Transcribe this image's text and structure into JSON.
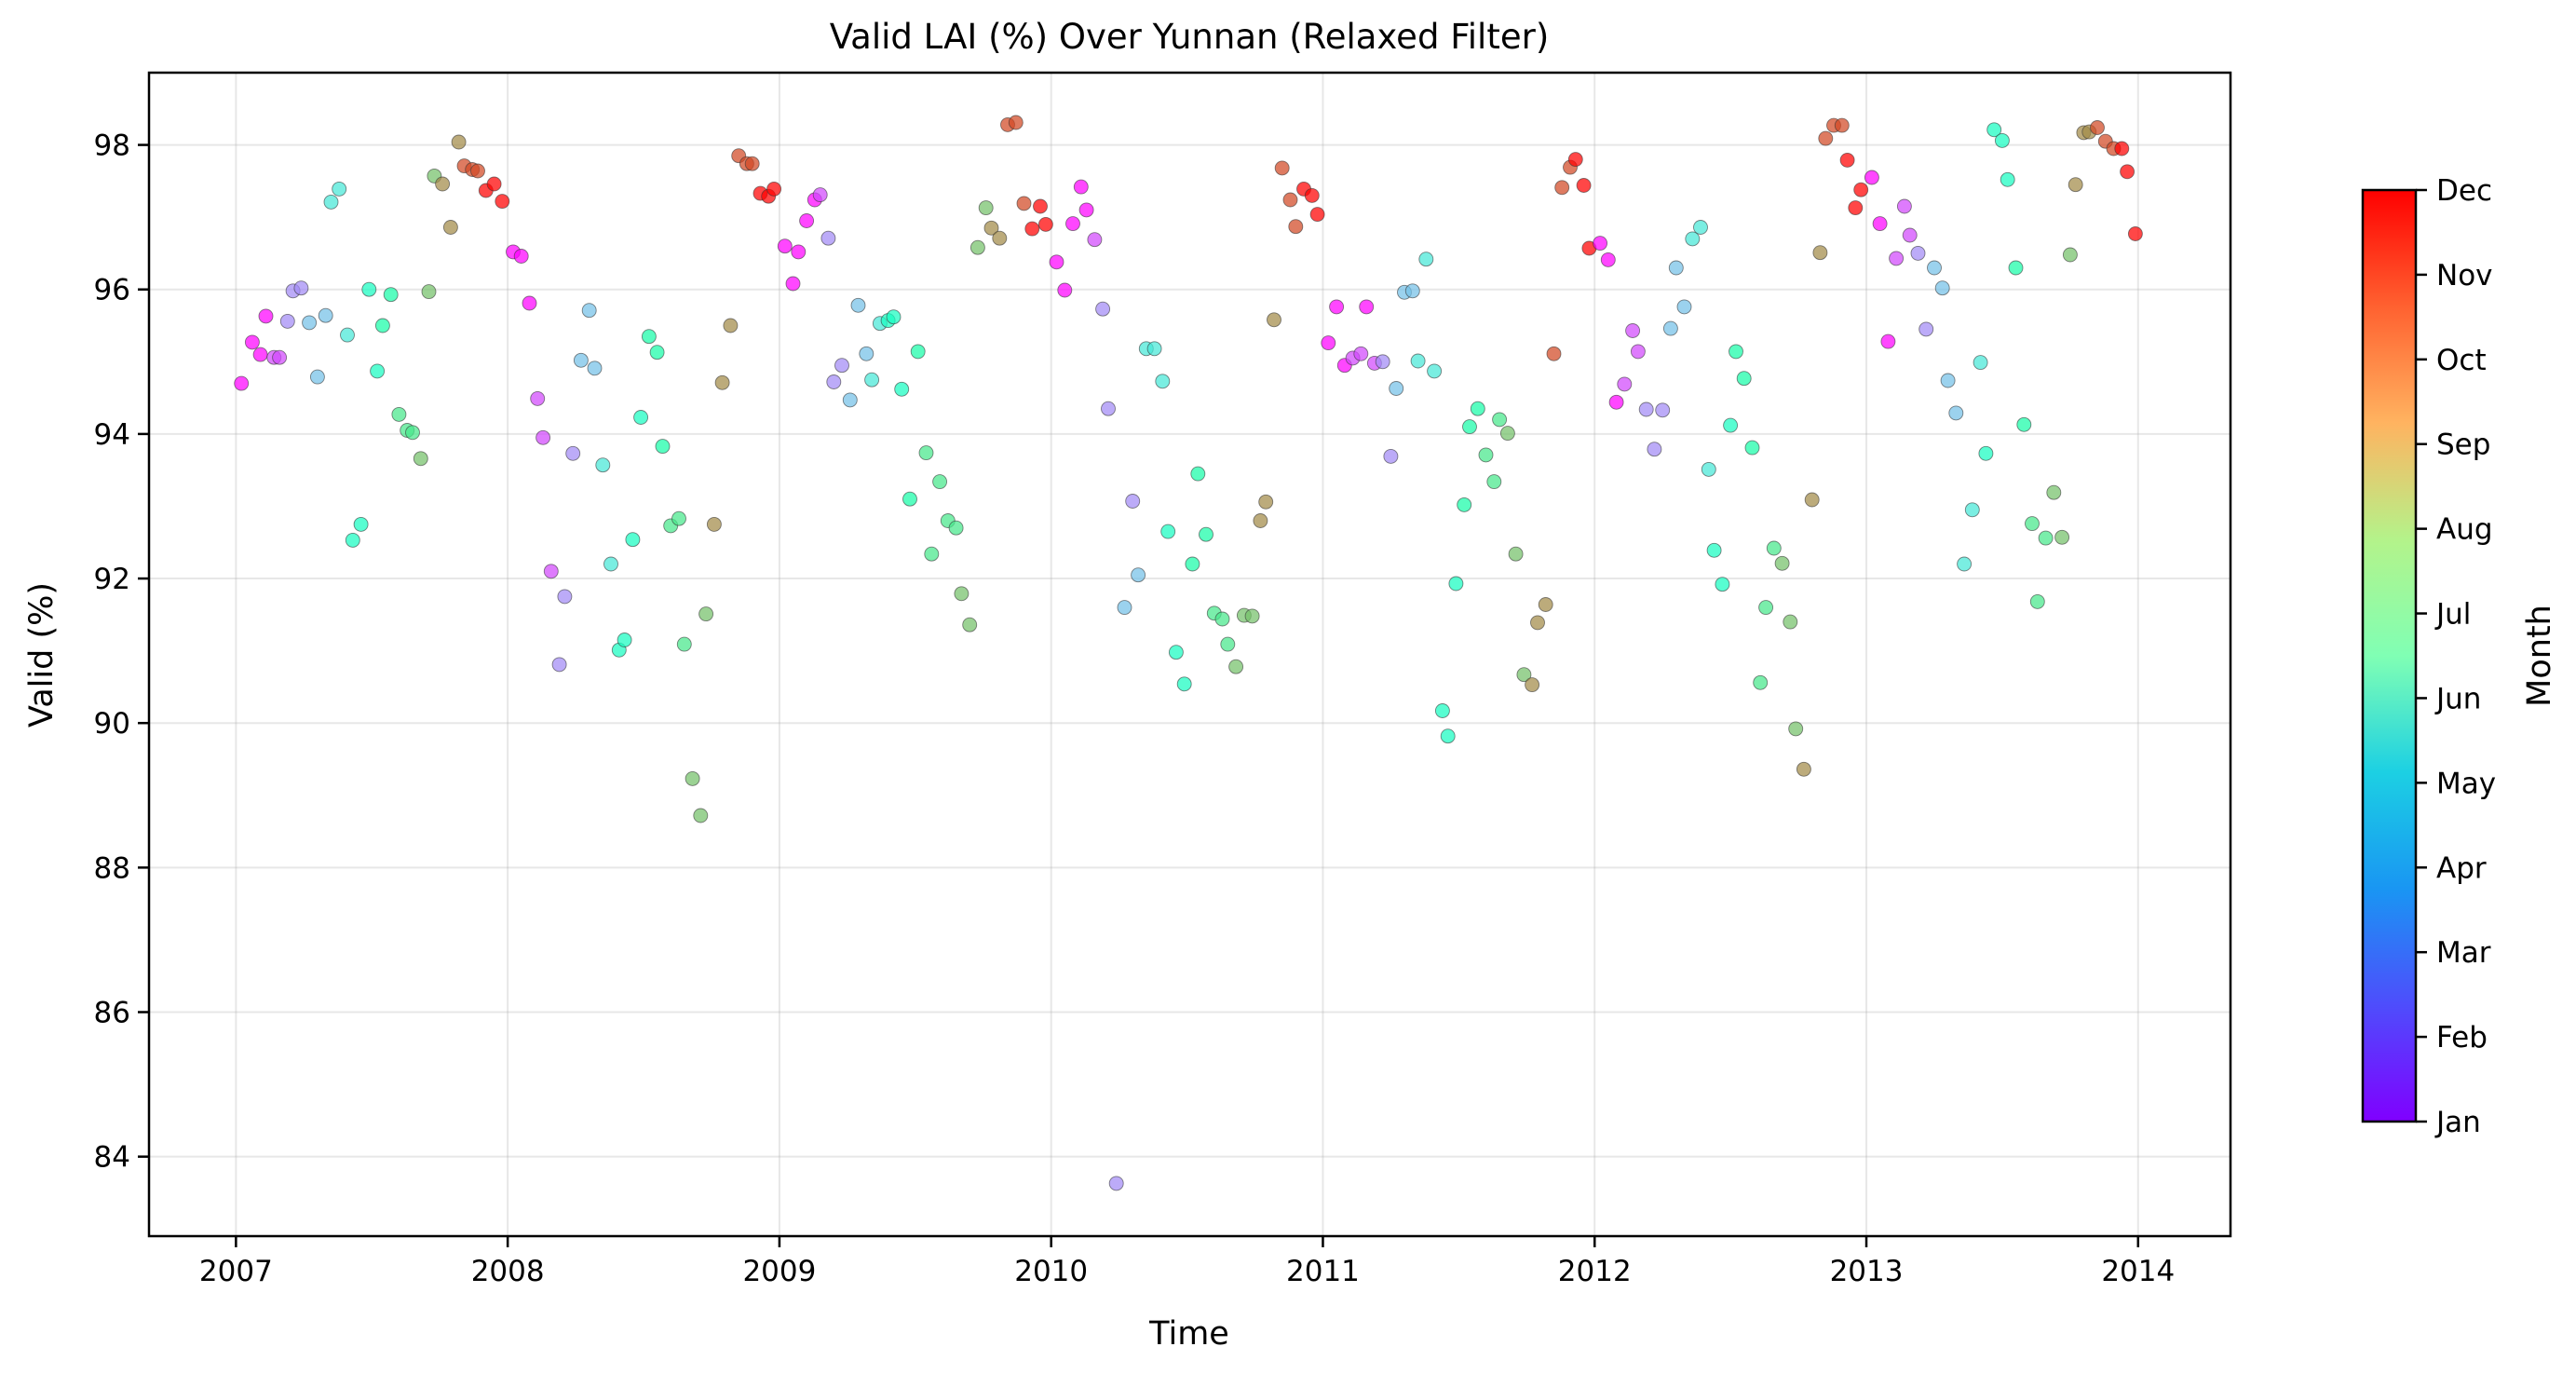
{
  "chart_data": {
    "type": "scatter",
    "title": "Valid LAI (%) Over Yunnan (Relaxed Filter)",
    "xlabel": "Time",
    "ylabel": "Valid (%)",
    "xlim": [
      2006.68,
      2014.34
    ],
    "ylim": [
      82.9,
      99.0
    ],
    "x_ticks": [
      2007,
      2008,
      2009,
      2010,
      2011,
      2012,
      2013,
      2014
    ],
    "x_tick_labels": [
      "2007",
      "2008",
      "2009",
      "2010",
      "2011",
      "2012",
      "2013",
      "2014"
    ],
    "y_ticks": [
      84,
      86,
      88,
      90,
      92,
      94,
      96,
      98
    ],
    "y_tick_labels": [
      "84",
      "86",
      "88",
      "90",
      "92",
      "94",
      "96",
      "98"
    ],
    "grid": true,
    "colorbar": {
      "label": "Month",
      "colormap": "rainbow",
      "range": [
        1,
        12
      ],
      "tick_labels": [
        "Jan",
        "Feb",
        "Mar",
        "Apr",
        "May",
        "Jun",
        "Jul",
        "Aug",
        "Sep",
        "Oct",
        "Nov",
        "Dec"
      ]
    },
    "points": [
      [
        2007.02,
        94.7,
        1
      ],
      [
        2007.06,
        95.27,
        1
      ],
      [
        2007.09,
        95.1,
        1
      ],
      [
        2007.11,
        95.63,
        1
      ],
      [
        2007.14,
        95.06,
        2
      ],
      [
        2007.16,
        95.06,
        2
      ],
      [
        2007.19,
        95.56,
        3
      ],
      [
        2007.21,
        95.98,
        3
      ],
      [
        2007.24,
        96.02,
        3
      ],
      [
        2007.27,
        95.54,
        4
      ],
      [
        2007.3,
        94.79,
        4
      ],
      [
        2007.33,
        95.64,
        4
      ],
      [
        2007.35,
        97.21,
        5
      ],
      [
        2007.38,
        97.39,
        5
      ],
      [
        2007.41,
        95.37,
        5
      ],
      [
        2007.43,
        92.53,
        6
      ],
      [
        2007.46,
        92.75,
        6
      ],
      [
        2007.49,
        96.0,
        6
      ],
      [
        2007.52,
        94.87,
        6
      ],
      [
        2007.54,
        95.5,
        7
      ],
      [
        2007.57,
        95.93,
        7
      ],
      [
        2007.6,
        94.27,
        8
      ],
      [
        2007.63,
        94.05,
        8
      ],
      [
        2007.65,
        94.02,
        8
      ],
      [
        2007.68,
        93.66,
        9
      ],
      [
        2007.71,
        95.97,
        9
      ],
      [
        2007.73,
        97.57,
        9
      ],
      [
        2007.76,
        97.46,
        10
      ],
      [
        2007.79,
        96.86,
        10
      ],
      [
        2007.82,
        98.04,
        10
      ],
      [
        2007.84,
        97.71,
        11
      ],
      [
        2007.87,
        97.66,
        11
      ],
      [
        2007.89,
        97.64,
        11
      ],
      [
        2007.92,
        97.37,
        12
      ],
      [
        2007.95,
        97.46,
        12
      ],
      [
        2007.98,
        97.22,
        12
      ],
      [
        2008.02,
        96.52,
        1
      ],
      [
        2008.05,
        96.46,
        1
      ],
      [
        2008.08,
        95.81,
        1
      ],
      [
        2008.11,
        94.49,
        2
      ],
      [
        2008.13,
        93.95,
        2
      ],
      [
        2008.16,
        92.1,
        2
      ],
      [
        2008.19,
        90.81,
        3
      ],
      [
        2008.21,
        91.75,
        3
      ],
      [
        2008.24,
        93.73,
        3
      ],
      [
        2008.27,
        95.02,
        4
      ],
      [
        2008.3,
        95.71,
        4
      ],
      [
        2008.32,
        94.91,
        4
      ],
      [
        2008.35,
        93.57,
        5
      ],
      [
        2008.38,
        92.2,
        5
      ],
      [
        2008.41,
        91.01,
        6
      ],
      [
        2008.43,
        91.15,
        6
      ],
      [
        2008.46,
        92.54,
        6
      ],
      [
        2008.49,
        94.23,
        6
      ],
      [
        2008.52,
        95.35,
        7
      ],
      [
        2008.55,
        95.13,
        7
      ],
      [
        2008.57,
        93.83,
        7
      ],
      [
        2008.6,
        92.73,
        8
      ],
      [
        2008.63,
        92.83,
        8
      ],
      [
        2008.65,
        91.09,
        8
      ],
      [
        2008.68,
        89.23,
        9
      ],
      [
        2008.71,
        88.72,
        9
      ],
      [
        2008.73,
        91.51,
        9
      ],
      [
        2008.76,
        92.75,
        10
      ],
      [
        2008.79,
        94.71,
        10
      ],
      [
        2008.82,
        95.5,
        10
      ],
      [
        2008.85,
        97.85,
        11
      ],
      [
        2008.88,
        97.74,
        11
      ],
      [
        2008.9,
        97.74,
        11
      ],
      [
        2008.93,
        97.33,
        12
      ],
      [
        2008.96,
        97.29,
        12
      ],
      [
        2008.98,
        97.39,
        12
      ],
      [
        2009.02,
        96.6,
        1
      ],
      [
        2009.05,
        96.08,
        1
      ],
      [
        2009.07,
        96.52,
        1
      ],
      [
        2009.1,
        96.95,
        1
      ],
      [
        2009.13,
        97.24,
        1
      ],
      [
        2009.15,
        97.31,
        2
      ],
      [
        2009.18,
        96.71,
        3
      ],
      [
        2009.2,
        94.72,
        3
      ],
      [
        2009.23,
        94.95,
        3
      ],
      [
        2009.26,
        94.47,
        4
      ],
      [
        2009.29,
        95.78,
        4
      ],
      [
        2009.32,
        95.11,
        4
      ],
      [
        2009.34,
        94.75,
        5
      ],
      [
        2009.37,
        95.53,
        5
      ],
      [
        2009.4,
        95.57,
        6
      ],
      [
        2009.42,
        95.62,
        6
      ],
      [
        2009.45,
        94.62,
        6
      ],
      [
        2009.48,
        93.1,
        7
      ],
      [
        2009.51,
        95.14,
        7
      ],
      [
        2009.54,
        93.74,
        8
      ],
      [
        2009.56,
        92.34,
        8
      ],
      [
        2009.59,
        93.34,
        8
      ],
      [
        2009.62,
        92.8,
        8
      ],
      [
        2009.65,
        92.7,
        8
      ],
      [
        2009.67,
        91.79,
        9
      ],
      [
        2009.7,
        91.36,
        9
      ],
      [
        2009.73,
        96.58,
        9
      ],
      [
        2009.76,
        97.13,
        9
      ],
      [
        2009.78,
        96.85,
        10
      ],
      [
        2009.81,
        96.71,
        10
      ],
      [
        2009.84,
        98.28,
        11
      ],
      [
        2009.87,
        98.31,
        11
      ],
      [
        2009.9,
        97.19,
        11
      ],
      [
        2009.93,
        96.84,
        12
      ],
      [
        2009.96,
        97.15,
        12
      ],
      [
        2009.98,
        96.9,
        12
      ],
      [
        2010.02,
        96.38,
        1
      ],
      [
        2010.05,
        95.99,
        1
      ],
      [
        2010.08,
        96.91,
        1
      ],
      [
        2010.11,
        97.42,
        1
      ],
      [
        2010.13,
        97.1,
        1
      ],
      [
        2010.16,
        96.69,
        2
      ],
      [
        2010.19,
        95.73,
        3
      ],
      [
        2010.21,
        94.35,
        3
      ],
      [
        2010.24,
        83.63,
        3
      ],
      [
        2010.27,
        91.6,
        4
      ],
      [
        2010.3,
        93.07,
        3
      ],
      [
        2010.32,
        92.05,
        4
      ],
      [
        2010.35,
        95.18,
        5
      ],
      [
        2010.38,
        95.18,
        5
      ],
      [
        2010.41,
        94.73,
        5
      ],
      [
        2010.43,
        92.65,
        6
      ],
      [
        2010.46,
        90.98,
        6
      ],
      [
        2010.49,
        90.54,
        6
      ],
      [
        2010.52,
        92.2,
        7
      ],
      [
        2010.54,
        93.45,
        7
      ],
      [
        2010.57,
        92.61,
        7
      ],
      [
        2010.6,
        91.52,
        8
      ],
      [
        2010.63,
        91.44,
        8
      ],
      [
        2010.65,
        91.09,
        8
      ],
      [
        2010.68,
        90.78,
        9
      ],
      [
        2010.71,
        91.49,
        9
      ],
      [
        2010.74,
        91.48,
        9
      ],
      [
        2010.77,
        92.8,
        10
      ],
      [
        2010.79,
        93.06,
        10
      ],
      [
        2010.82,
        95.58,
        10
      ],
      [
        2010.85,
        97.68,
        11
      ],
      [
        2010.88,
        97.24,
        11
      ],
      [
        2010.9,
        96.87,
        11
      ],
      [
        2010.93,
        97.39,
        12
      ],
      [
        2010.96,
        97.3,
        12
      ],
      [
        2010.98,
        97.04,
        12
      ],
      [
        2011.02,
        95.26,
        1
      ],
      [
        2011.05,
        95.76,
        1
      ],
      [
        2011.08,
        94.95,
        1
      ],
      [
        2011.11,
        95.05,
        2
      ],
      [
        2011.14,
        95.11,
        2
      ],
      [
        2011.16,
        95.76,
        1
      ],
      [
        2011.19,
        94.98,
        2
      ],
      [
        2011.22,
        95.0,
        3
      ],
      [
        2011.25,
        93.69,
        3
      ],
      [
        2011.27,
        94.63,
        4
      ],
      [
        2011.3,
        95.96,
        4
      ],
      [
        2011.33,
        95.98,
        4
      ],
      [
        2011.35,
        95.01,
        5
      ],
      [
        2011.38,
        96.42,
        5
      ],
      [
        2011.41,
        94.87,
        5
      ],
      [
        2011.44,
        90.17,
        6
      ],
      [
        2011.46,
        89.82,
        6
      ],
      [
        2011.49,
        91.93,
        6
      ],
      [
        2011.52,
        93.02,
        7
      ],
      [
        2011.54,
        94.1,
        7
      ],
      [
        2011.57,
        94.35,
        7
      ],
      [
        2011.6,
        93.71,
        8
      ],
      [
        2011.63,
        93.34,
        8
      ],
      [
        2011.65,
        94.2,
        8
      ],
      [
        2011.68,
        94.01,
        9
      ],
      [
        2011.71,
        92.34,
        9
      ],
      [
        2011.74,
        90.67,
        9
      ],
      [
        2011.77,
        90.53,
        10
      ],
      [
        2011.79,
        91.39,
        10
      ],
      [
        2011.82,
        91.64,
        10
      ],
      [
        2011.85,
        95.11,
        11
      ],
      [
        2011.88,
        97.41,
        11
      ],
      [
        2011.91,
        97.69,
        11
      ],
      [
        2011.93,
        97.8,
        12
      ],
      [
        2011.96,
        97.44,
        12
      ],
      [
        2011.98,
        96.57,
        12
      ],
      [
        2012.02,
        96.64,
        1
      ],
      [
        2012.05,
        96.41,
        1
      ],
      [
        2012.08,
        94.44,
        1
      ],
      [
        2012.11,
        94.69,
        2
      ],
      [
        2012.14,
        95.43,
        2
      ],
      [
        2012.16,
        95.14,
        2
      ],
      [
        2012.19,
        94.34,
        3
      ],
      [
        2012.22,
        93.79,
        3
      ],
      [
        2012.25,
        94.33,
        3
      ],
      [
        2012.28,
        95.46,
        4
      ],
      [
        2012.3,
        96.3,
        4
      ],
      [
        2012.33,
        95.76,
        4
      ],
      [
        2012.36,
        96.7,
        5
      ],
      [
        2012.39,
        96.86,
        5
      ],
      [
        2012.42,
        93.51,
        5
      ],
      [
        2012.44,
        92.39,
        6
      ],
      [
        2012.47,
        91.92,
        6
      ],
      [
        2012.5,
        94.12,
        6
      ],
      [
        2012.52,
        95.14,
        7
      ],
      [
        2012.55,
        94.77,
        7
      ],
      [
        2012.58,
        93.81,
        7
      ],
      [
        2012.61,
        90.56,
        8
      ],
      [
        2012.63,
        91.6,
        8
      ],
      [
        2012.66,
        92.42,
        8
      ],
      [
        2012.69,
        92.21,
        9
      ],
      [
        2012.72,
        91.4,
        9
      ],
      [
        2012.74,
        89.92,
        9
      ],
      [
        2012.77,
        89.36,
        10
      ],
      [
        2012.8,
        93.09,
        10
      ],
      [
        2012.83,
        96.51,
        10
      ],
      [
        2012.85,
        98.09,
        11
      ],
      [
        2012.88,
        98.27,
        11
      ],
      [
        2012.91,
        98.27,
        11
      ],
      [
        2012.93,
        97.79,
        12
      ],
      [
        2012.96,
        97.13,
        12
      ],
      [
        2012.98,
        97.38,
        12
      ],
      [
        2013.02,
        97.55,
        1
      ],
      [
        2013.05,
        96.91,
        1
      ],
      [
        2013.08,
        95.28,
        1
      ],
      [
        2013.11,
        96.43,
        2
      ],
      [
        2013.14,
        97.15,
        2
      ],
      [
        2013.16,
        96.75,
        2
      ],
      [
        2013.19,
        96.5,
        3
      ],
      [
        2013.22,
        95.45,
        3
      ],
      [
        2013.25,
        96.3,
        4
      ],
      [
        2013.28,
        96.02,
        4
      ],
      [
        2013.3,
        94.74,
        4
      ],
      [
        2013.33,
        94.29,
        4
      ],
      [
        2013.36,
        92.2,
        5
      ],
      [
        2013.39,
        92.95,
        5
      ],
      [
        2013.42,
        94.99,
        5
      ],
      [
        2013.44,
        93.73,
        6
      ],
      [
        2013.47,
        98.21,
        6
      ],
      [
        2013.5,
        98.06,
        6
      ],
      [
        2013.52,
        97.52,
        6
      ],
      [
        2013.55,
        96.3,
        7
      ],
      [
        2013.58,
        94.13,
        7
      ],
      [
        2013.61,
        92.76,
        8
      ],
      [
        2013.63,
        91.68,
        8
      ],
      [
        2013.66,
        92.56,
        8
      ],
      [
        2013.69,
        93.19,
        9
      ],
      [
        2013.72,
        92.57,
        9
      ],
      [
        2013.75,
        96.48,
        9
      ],
      [
        2013.77,
        97.45,
        10
      ],
      [
        2013.8,
        98.17,
        10
      ],
      [
        2013.82,
        98.18,
        10
      ],
      [
        2013.85,
        98.24,
        11
      ],
      [
        2013.88,
        98.05,
        11
      ],
      [
        2013.91,
        97.95,
        11
      ],
      [
        2013.94,
        97.95,
        12
      ],
      [
        2013.96,
        97.63,
        12
      ],
      [
        2013.99,
        96.77,
        12
      ]
    ]
  }
}
